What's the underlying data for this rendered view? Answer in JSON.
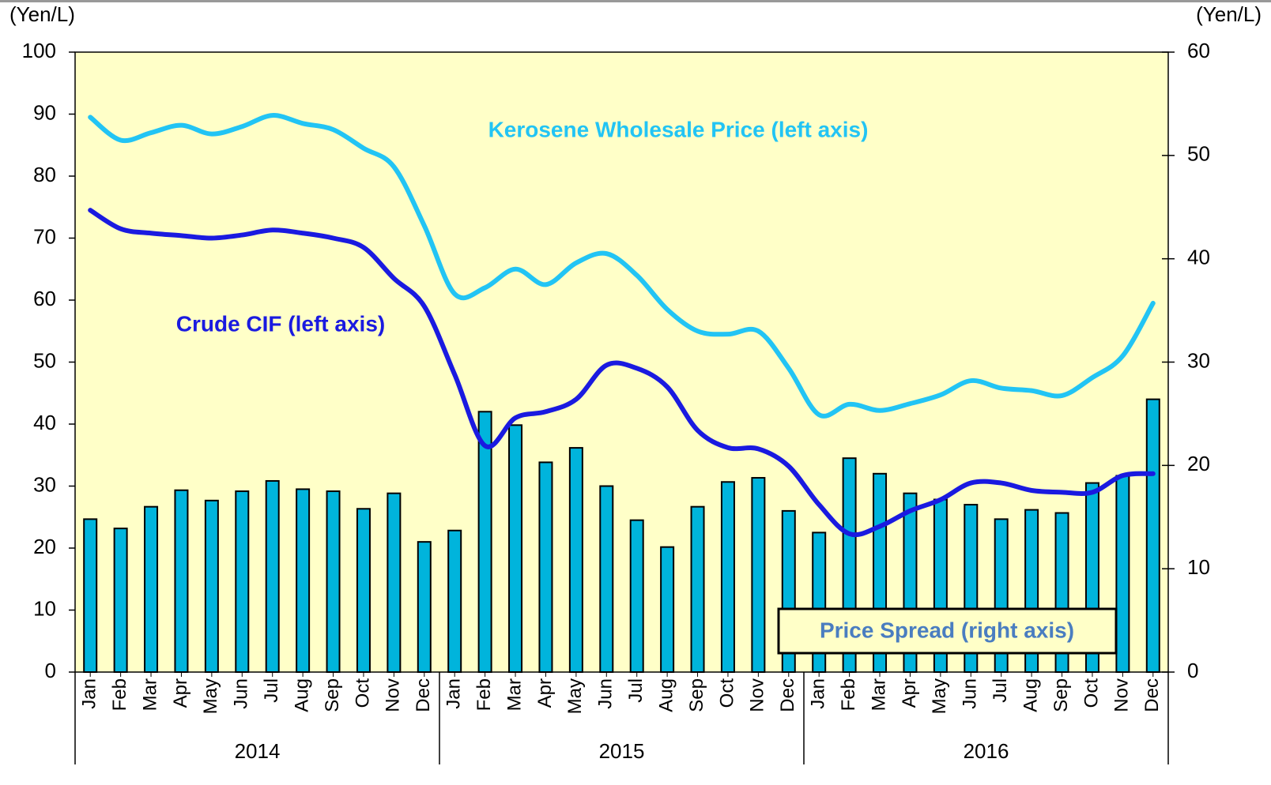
{
  "chart_data": {
    "type": "combo",
    "ylabel": "(Yen/L)",
    "y2label": "(Yen/L)",
    "categories": [
      "Jan",
      "Feb",
      "Mar",
      "Apr",
      "May",
      "Jun",
      "Jul",
      "Aug",
      "Sep",
      "Oct",
      "Nov",
      "Dec",
      "Jan",
      "Feb",
      "Mar",
      "Apr",
      "May",
      "Jun",
      "Jul",
      "Aug",
      "Sep",
      "Oct",
      "Nov",
      "Dec",
      "Jan",
      "Feb",
      "Mar",
      "Apr",
      "May",
      "Jun",
      "Jul",
      "Aug",
      "Sep",
      "Oct",
      "Nov",
      "Dec"
    ],
    "x_groups": [
      "2014",
      "2015",
      "2016"
    ],
    "ylim": [
      0,
      100
    ],
    "yticks": [
      0,
      10,
      20,
      30,
      40,
      50,
      60,
      70,
      80,
      90,
      100
    ],
    "y2lim": [
      0,
      60
    ],
    "y2ticks": [
      0,
      10,
      20,
      30,
      40,
      50,
      60
    ],
    "background": "#ffffc8",
    "series": [
      {
        "name": "Price Spread (right axis)",
        "type": "bar",
        "axis": "y2",
        "color": "#00b4dc",
        "values": [
          14.8,
          13.9,
          16.0,
          17.6,
          16.6,
          17.5,
          18.5,
          17.7,
          17.5,
          15.8,
          17.3,
          12.6,
          13.7,
          25.2,
          23.9,
          20.3,
          21.7,
          18.0,
          14.7,
          12.1,
          16.0,
          18.4,
          18.8,
          15.6,
          13.5,
          20.7,
          19.2,
          17.3,
          16.7,
          16.2,
          14.8,
          15.7,
          15.4,
          18.3,
          19.0,
          26.4
        ]
      },
      {
        "name": "Kerosene Wholesale Price (left axis)",
        "type": "line",
        "color": "#22c4f4",
        "values": [
          89.5,
          85.8,
          87,
          88.2,
          86.8,
          88,
          89.8,
          88.5,
          87.5,
          84.5,
          81.5,
          72,
          61,
          62,
          65,
          62.5,
          66,
          67.5,
          64,
          58.5,
          55,
          54.5,
          55,
          49,
          41.5,
          43.2,
          42.2,
          43.3,
          44.7,
          47,
          45.8,
          45.4,
          44.6,
          47.5,
          51,
          59.5
        ]
      },
      {
        "name": "Crude CIF (left axis)",
        "type": "line",
        "color": "#1a1ae0",
        "values": [
          74.5,
          71.5,
          70.8,
          70.4,
          70,
          70.5,
          71.3,
          70.8,
          70,
          68.5,
          63.5,
          59,
          48,
          36.5,
          41,
          42,
          44,
          49.5,
          49,
          46,
          39,
          36.2,
          36,
          33.2,
          27,
          22.3,
          23.5,
          26,
          27.8,
          30.5,
          30.5,
          29.3,
          29,
          29,
          31.7,
          32
        ]
      }
    ]
  }
}
